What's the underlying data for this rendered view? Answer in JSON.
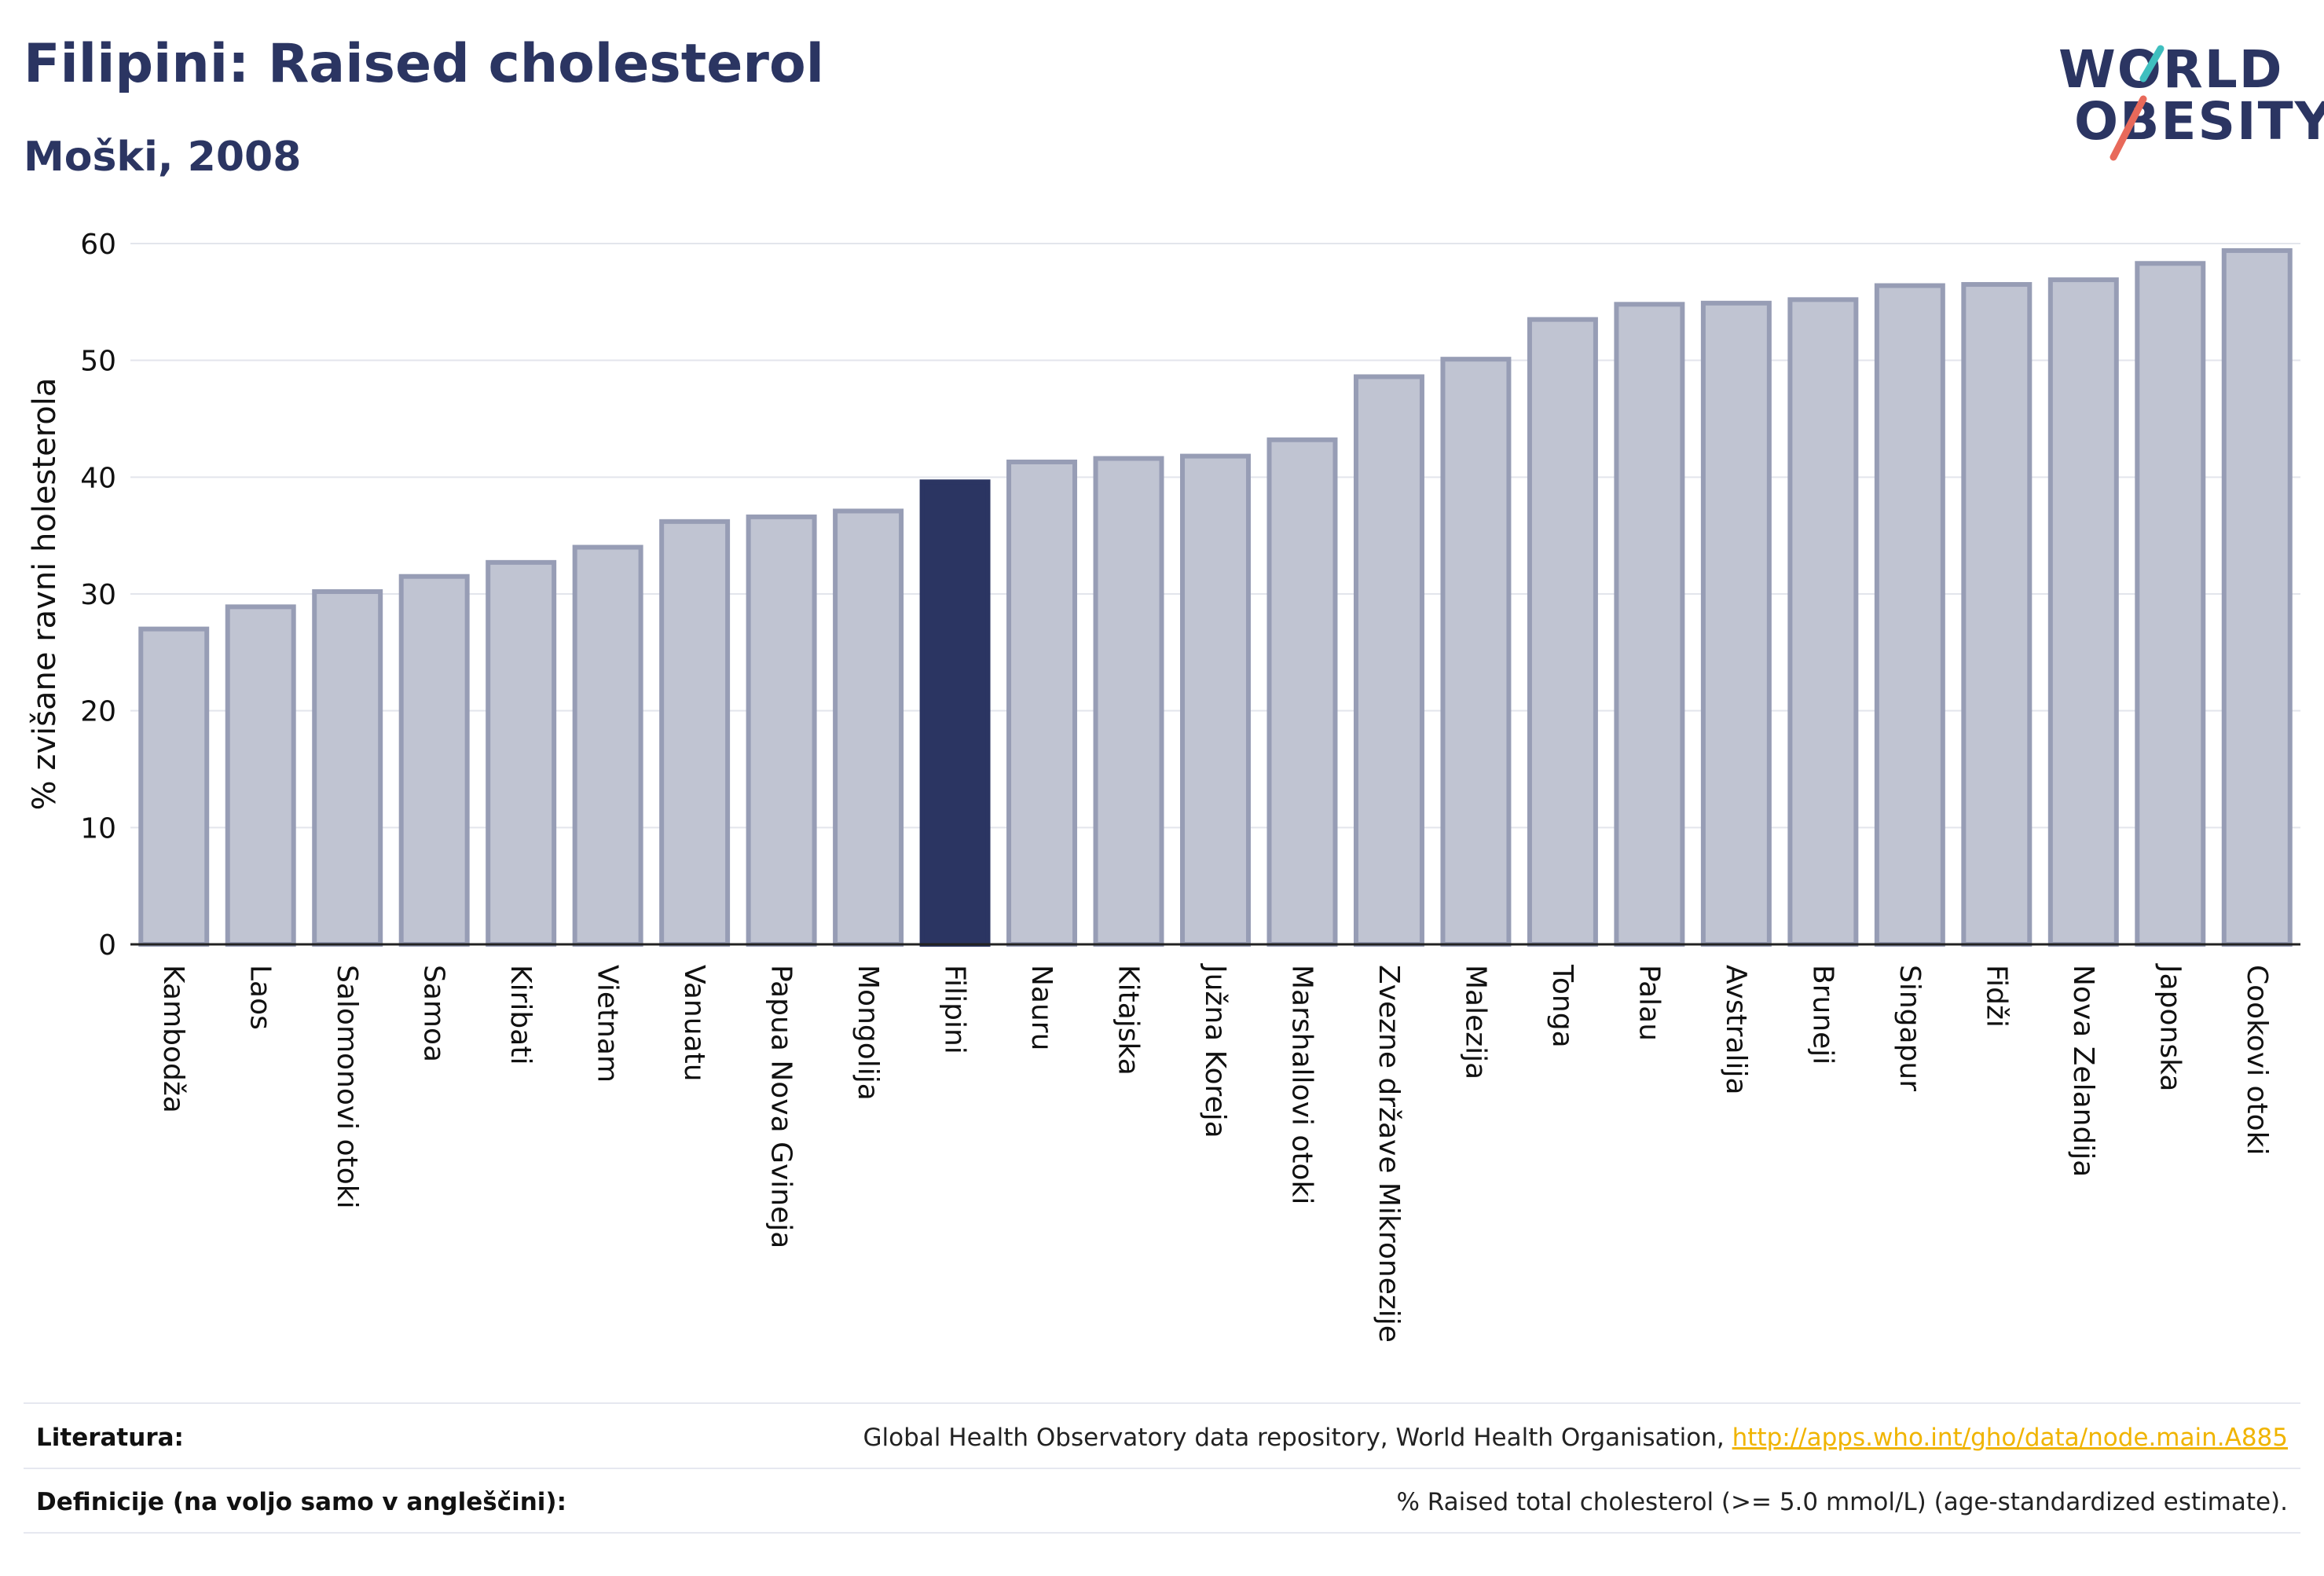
{
  "title": "Filipini: Raised cholesterol",
  "subtitle": "Moški, 2008",
  "logo": {
    "line1": "WORLD",
    "line2": "OBESITY",
    "accent_teal": "#3fbfbf",
    "accent_red": "#e8695a"
  },
  "colors": {
    "highlight": "#2b3562",
    "bar_fill": "#c0c4d2",
    "bar_stroke": "#979db5",
    "grid": "#e3e5ec",
    "axis": "#222222"
  },
  "chart_data": {
    "type": "bar",
    "ylabel": "% zvišane ravni holesterola",
    "ylim": [
      0,
      60
    ],
    "yticks": [
      0,
      10,
      20,
      30,
      40,
      50,
      60
    ],
    "highlight": "Filipini",
    "categories": [
      "Kambodža",
      "Laos",
      "Salomonovi otoki",
      "Samoa",
      "Kiribati",
      "Vietnam",
      "Vanuatu",
      "Papua Nova Gvineja",
      "Mongolija",
      "Filipini",
      "Nauru",
      "Kitajska",
      "Južna Koreja",
      "Marshallovi otoki",
      "Zvezne države Mikronezije",
      "Malezija",
      "Tonga",
      "Palau",
      "Avstralija",
      "Bruneji",
      "Singapur",
      "Fidži",
      "Nova Zelandija",
      "Japonska",
      "Cookovi otoki"
    ],
    "values": [
      27.0,
      28.9,
      30.2,
      31.5,
      32.7,
      34.0,
      36.2,
      36.6,
      37.1,
      39.6,
      41.3,
      41.6,
      41.8,
      43.2,
      48.6,
      50.1,
      53.5,
      54.8,
      54.9,
      55.2,
      56.4,
      56.5,
      56.9,
      58.3,
      59.4
    ],
    "grid": true,
    "legend": "none"
  },
  "footer": {
    "literature_label": "Literatura:",
    "literature_text": "Global Health Observatory data repository, World Health Organisation, ",
    "literature_link": "http://apps.who.int/gho/data/node.main.A885",
    "definitions_label": "Definicije (na voljo samo v angleščini):",
    "definitions_text": "% Raised total cholesterol (>= 5.0 mmol/L) (age-standardized estimate)."
  }
}
